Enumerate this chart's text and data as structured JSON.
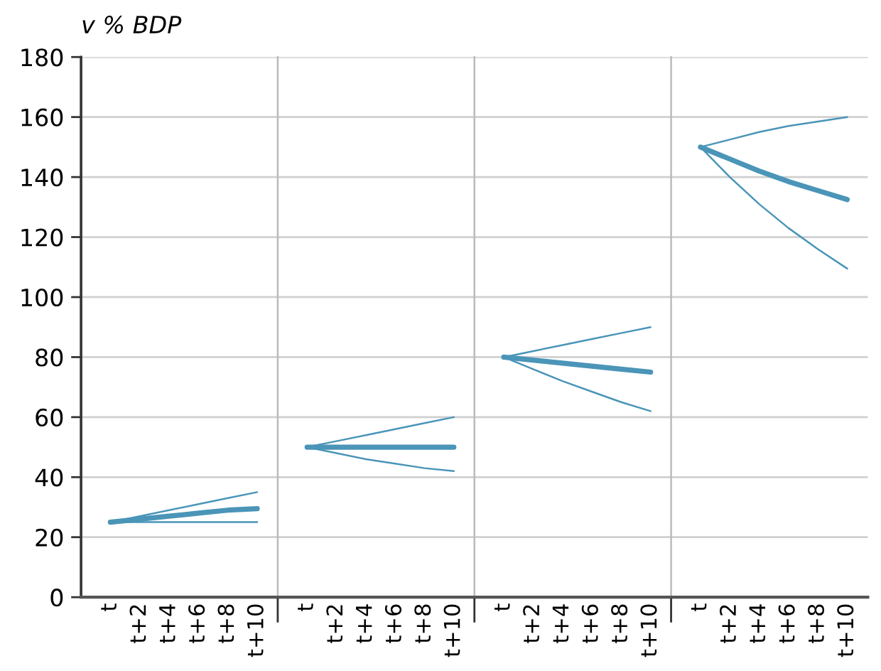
{
  "chart_data": [
    {
      "type": "line",
      "ylabel": "v % BDP",
      "categories": [
        "t",
        "t+2",
        "t+4",
        "t+6",
        "t+8",
        "t+10"
      ],
      "ylim": [
        0,
        180
      ],
      "yticks": [
        0,
        20,
        40,
        60,
        80,
        100,
        120,
        140,
        160,
        180
      ],
      "grid": "y",
      "marker": "none",
      "line_style": "solid",
      "series": [
        {
          "color": "#4a95b8",
          "values": [
            25,
            27,
            29,
            31,
            33,
            35
          ]
        },
        {
          "color": "#4a95b8",
          "values": [
            25,
            26,
            27,
            28,
            29,
            29.5
          ]
        },
        {
          "color": "#4a95b8",
          "values": [
            25,
            25,
            25,
            25,
            25,
            25
          ]
        }
      ]
    },
    {
      "type": "line",
      "categories": [
        "t",
        "t+2",
        "t+4",
        "t+6",
        "t+8",
        "t+10"
      ],
      "ylim": [
        0,
        180
      ],
      "tick_labels": "x",
      "grid": "y",
      "marker": "none",
      "line_style": "solid",
      "series": [
        {
          "color": "#4a95b8",
          "values": [
            50,
            52,
            54,
            56,
            58,
            60
          ]
        },
        {
          "color": "#4a95b8",
          "values": [
            50,
            50,
            50,
            50,
            50,
            50
          ]
        },
        {
          "color": "#4a95b8",
          "values": [
            50,
            48,
            46,
            44.5,
            43,
            42
          ]
        }
      ]
    },
    {
      "type": "line",
      "categories": [
        "t",
        "t+2",
        "t+4",
        "t+6",
        "t+8",
        "t+10"
      ],
      "ylim": [
        0,
        180
      ],
      "tick_labels": "x",
      "grid": "y",
      "marker": "none",
      "line_style": "solid",
      "series": [
        {
          "color": "#4a95b8",
          "values": [
            80,
            82,
            84,
            86,
            88,
            90
          ]
        },
        {
          "color": "#4a95b8",
          "values": [
            80,
            79,
            78,
            77,
            76,
            75
          ]
        },
        {
          "color": "#4a95b8",
          "values": [
            80,
            76,
            72,
            68.5,
            65,
            62
          ]
        }
      ]
    },
    {
      "type": "line",
      "categories": [
        "t",
        "t+2",
        "t+4",
        "t+6",
        "t+8",
        "t+10"
      ],
      "ylim": [
        0,
        180
      ],
      "tick_labels": "x",
      "grid": "y",
      "marker": "none",
      "line_style": "solid",
      "series": [
        {
          "color": "#4a95b8",
          "values": [
            150,
            152.5,
            155,
            157,
            158.5,
            160
          ]
        },
        {
          "color": "#4a95b8",
          "values": [
            150,
            146,
            142,
            138.5,
            135.5,
            132.5
          ]
        },
        {
          "color": "#4a95b8",
          "values": [
            150,
            140,
            131,
            123,
            116,
            109.5
          ]
        }
      ]
    }
  ]
}
